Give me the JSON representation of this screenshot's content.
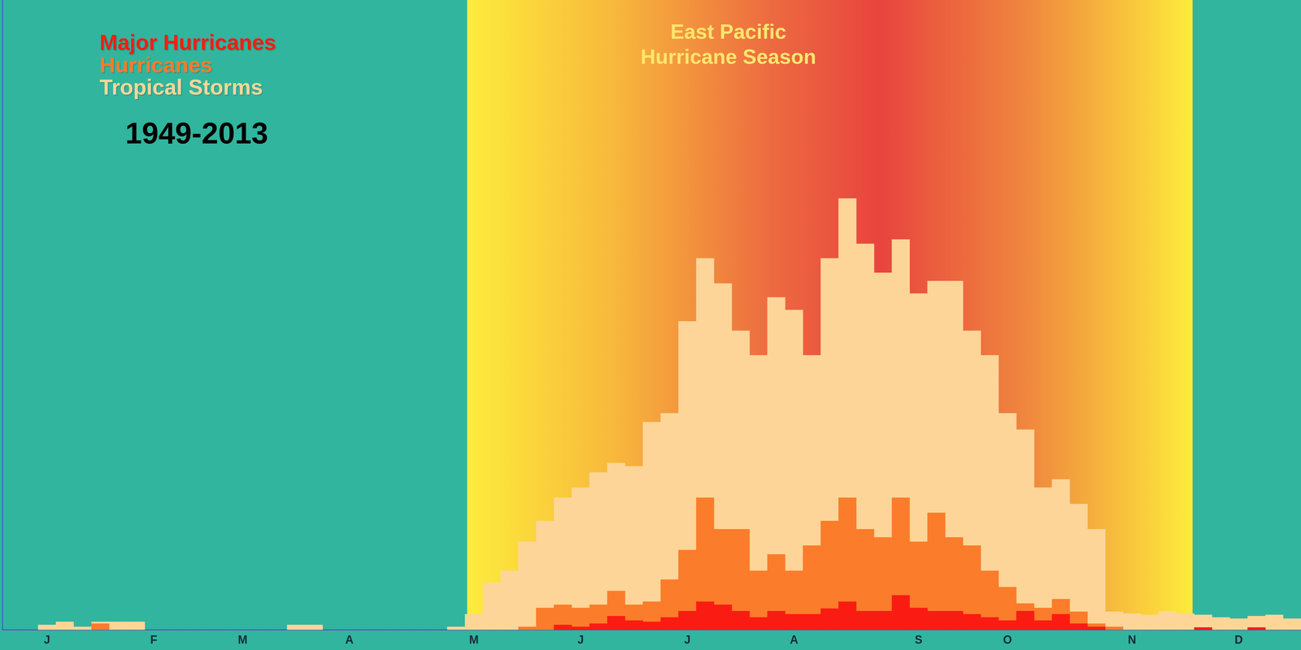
{
  "chart_data": {
    "type": "bar",
    "title": [
      "East Pacific",
      "Hurricane Season"
    ],
    "subtitle": "1949-2013",
    "categories": [
      null,
      null,
      "J",
      null,
      null,
      null,
      null,
      null,
      "F",
      null,
      null,
      null,
      null,
      "M",
      null,
      null,
      null,
      null,
      null,
      "A",
      null,
      null,
      null,
      null,
      null,
      null,
      "M",
      null,
      null,
      null,
      null,
      null,
      "J",
      null,
      null,
      null,
      null,
      null,
      "J",
      null,
      null,
      null,
      null,
      null,
      "A",
      null,
      null,
      null,
      null,
      null,
      null,
      "S",
      null,
      null,
      null,
      null,
      "O",
      null,
      null,
      null,
      null,
      null,
      null,
      "N",
      null,
      null,
      null,
      null,
      null,
      "D",
      null,
      null,
      null
    ],
    "series": [
      {
        "name": "Major Hurricanes",
        "color": "#fa1c12",
        "values": [
          0,
          0,
          0,
          0,
          0,
          0,
          0,
          0,
          0,
          0,
          0,
          0,
          0,
          0,
          0,
          0,
          0,
          0,
          0,
          0,
          0,
          0,
          0,
          0,
          0,
          0,
          0,
          0,
          0,
          0,
          0,
          0.8,
          0.5,
          1,
          2.2,
          1.5,
          1.3,
          2,
          3,
          4.5,
          4,
          3,
          2,
          3,
          2.5,
          2.5,
          3.4,
          4.5,
          3,
          3,
          5.5,
          3.5,
          3,
          3,
          2.5,
          2,
          1.5,
          3,
          1.5,
          2.5,
          1,
          0.5,
          0,
          0,
          0,
          0,
          0,
          0.4,
          0,
          0,
          0.4,
          0,
          0
        ]
      },
      {
        "name": "Hurricanes",
        "color": "#fb7c2a",
        "values": [
          0,
          0,
          0,
          0,
          0,
          1,
          0,
          0,
          0,
          0,
          0,
          0,
          0,
          0,
          0,
          0,
          0,
          0,
          0,
          0,
          0,
          0,
          0,
          0,
          0,
          0,
          0,
          0,
          0,
          0.5,
          3.5,
          4,
          3.5,
          4,
          6.2,
          4,
          4.5,
          8,
          12.7,
          21,
          16,
          16,
          9.4,
          12,
          9.4,
          13.4,
          17.3,
          21,
          16,
          14.7,
          21,
          14,
          18.6,
          14.7,
          13.4,
          9.4,
          6.8,
          4.2,
          3.5,
          4.9,
          2.9,
          1,
          0.5,
          0,
          0,
          0,
          0,
          0.3,
          0,
          0,
          0.3,
          0,
          0
        ]
      },
      {
        "name": "Tropical Storms",
        "color": "#fdd598",
        "values": [
          0,
          0,
          0.8,
          1.3,
          0.5,
          1.3,
          1.3,
          1.3,
          0,
          0,
          0,
          0,
          0,
          0,
          0,
          0,
          0.8,
          0.8,
          0,
          0,
          0,
          0,
          0,
          0,
          0,
          0.5,
          2.5,
          7.5,
          9.4,
          14,
          17.3,
          21,
          22.6,
          25,
          26.5,
          26,
          33,
          34.4,
          49,
          59,
          55,
          47.5,
          43.6,
          52.8,
          50.8,
          43.6,
          59,
          68.5,
          61.3,
          56.7,
          62,
          53.4,
          55.4,
          55.4,
          47.5,
          43.6,
          34.4,
          31.8,
          22.6,
          23.9,
          20,
          16,
          2.9,
          2.6,
          2.4,
          3,
          2.6,
          2.4,
          2,
          1.8,
          2.2,
          2.4,
          1.8
        ]
      }
    ],
    "ylim": [
      0,
      100
    ],
    "grid": false,
    "legend": "top-left",
    "tick_labels": "x"
  }
}
